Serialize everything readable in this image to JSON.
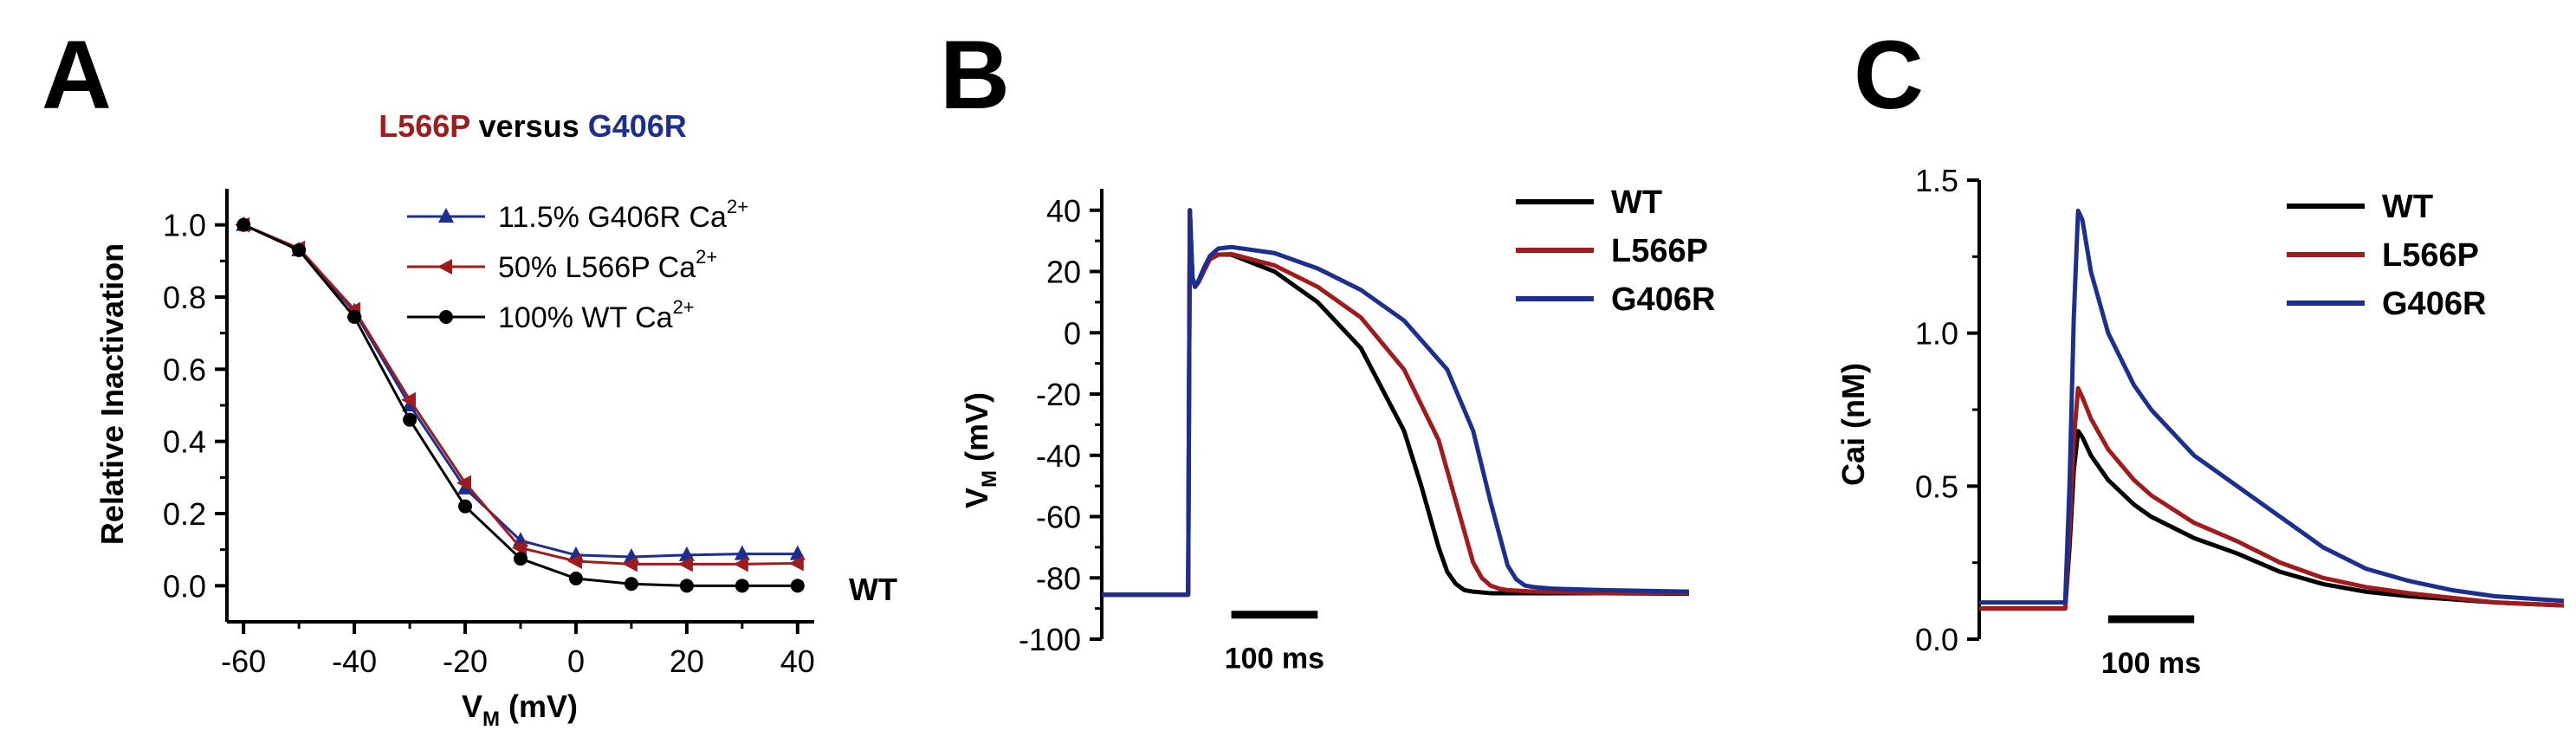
{
  "colors": {
    "wt": "#000000",
    "l566p": "#a01c1c",
    "g406r": "#1c2f8f"
  },
  "chart_data": [
    {
      "panel": "A",
      "type": "line",
      "title": {
        "part1": "L566P",
        "part2": "versus",
        "part3": "G406R"
      },
      "xlabel": {
        "main": "V",
        "sub": "M",
        "unit": "(mV)"
      },
      "ylabel": "Relative Inactivation",
      "xlim": [
        -63,
        43
      ],
      "ylim": [
        -0.1,
        1.1
      ],
      "xticks": [
        -60,
        -40,
        -20,
        0,
        20,
        40
      ],
      "yticks": [
        0.0,
        0.2,
        0.4,
        0.6,
        0.8,
        1.0
      ],
      "ytick_labels": [
        "0.0",
        "0.2",
        "0.4",
        "0.6",
        "0.8",
        "1.0"
      ],
      "x": [
        -60,
        -50,
        -40,
        -30,
        -20,
        -10,
        0,
        10,
        20,
        30,
        40
      ],
      "series": [
        {
          "name": "11.5% G406R Ca",
          "sup": "2+",
          "marker": "triangle-up",
          "color_key": "g406r",
          "values": [
            1.0,
            0.93,
            0.76,
            0.5,
            0.27,
            0.125,
            0.085,
            0.08,
            0.085,
            0.088,
            0.088
          ]
        },
        {
          "name": "50% L566P Ca",
          "sup": "2+",
          "marker": "triangle-left",
          "color_key": "l566p",
          "values": [
            1.0,
            0.935,
            0.765,
            0.515,
            0.285,
            0.105,
            0.068,
            0.06,
            0.06,
            0.06,
            0.062
          ]
        },
        {
          "name": "100% WT Ca",
          "sup": "2+",
          "marker": "circle",
          "color_key": "wt",
          "values": [
            1.0,
            0.93,
            0.745,
            0.46,
            0.22,
            0.075,
            0.02,
            0.005,
            0.0,
            0.0,
            0.0
          ]
        }
      ],
      "annotation": "WT"
    },
    {
      "panel": "B",
      "type": "line",
      "ylabel": {
        "main": "V",
        "sub": "M",
        "unit": "(mV)"
      },
      "ylim": [
        -100,
        47
      ],
      "yticks": [
        -100,
        -80,
        -60,
        -40,
        -20,
        0,
        20,
        40
      ],
      "xlim": [
        -100,
        580
      ],
      "scalebar": {
        "label": "100 ms",
        "x0": 50,
        "x1": 150,
        "y": -92
      },
      "series": [
        {
          "name": "WT",
          "color_key": "wt",
          "x": [
            -100,
            0,
            2,
            5,
            8,
            12,
            18,
            25,
            35,
            50,
            100,
            150,
            200,
            250,
            270,
            290,
            300,
            310,
            315,
            320,
            330,
            350,
            400,
            480,
            580
          ],
          "values": [
            -85.5,
            -85.5,
            40,
            18,
            15,
            16.5,
            20,
            24,
            25.5,
            25.5,
            20,
            10,
            -5,
            -32,
            -50,
            -70,
            -78,
            -82,
            -83,
            -84,
            -84.5,
            -85,
            -85,
            -85,
            -85.2
          ]
        },
        {
          "name": "L566P",
          "color_key": "l566p",
          "x": [
            -100,
            0,
            2,
            5,
            8,
            12,
            18,
            25,
            35,
            50,
            100,
            150,
            200,
            250,
            290,
            310,
            330,
            340,
            350,
            360,
            370,
            400,
            480,
            580
          ],
          "values": [
            -85.5,
            -85.5,
            40,
            18,
            15,
            16.5,
            20,
            24,
            25.5,
            25.7,
            22,
            15,
            5,
            -12,
            -35,
            -55,
            -75,
            -80,
            -82.5,
            -83.5,
            -84,
            -84.5,
            -85,
            -85
          ]
        },
        {
          "name": "G406R",
          "color_key": "g406r",
          "x": [
            -100,
            0,
            2,
            5,
            8,
            12,
            18,
            25,
            35,
            50,
            100,
            150,
            200,
            250,
            300,
            330,
            350,
            370,
            380,
            390,
            400,
            420,
            480,
            580
          ],
          "values": [
            -85.5,
            -85.5,
            40,
            18,
            15,
            17,
            21,
            25,
            27.5,
            28,
            26,
            21,
            14,
            4,
            -12,
            -32,
            -55,
            -76,
            -80.5,
            -82.5,
            -83,
            -83.5,
            -84,
            -84.5
          ]
        }
      ]
    },
    {
      "panel": "C",
      "type": "line",
      "ylabel": "Cai (nM)",
      "ylim": [
        0,
        1.5
      ],
      "yticks": [
        0.0,
        0.5,
        1.0,
        1.5
      ],
      "ytick_labels": [
        "0.0",
        "0.5",
        "1.0",
        "1.5"
      ],
      "xlim": [
        -100,
        580
      ],
      "scalebar": {
        "label": "100 ms",
        "x0": 50,
        "x1": 150,
        "y": 0.065
      },
      "series": [
        {
          "name": "WT",
          "color_key": "wt",
          "x": [
            -100,
            0,
            5,
            10,
            15,
            20,
            30,
            50,
            80,
            100,
            150,
            200,
            250,
            300,
            350,
            400,
            450,
            500,
            580
          ],
          "values": [
            0.1,
            0.1,
            0.3,
            0.55,
            0.68,
            0.66,
            0.6,
            0.52,
            0.44,
            0.4,
            0.33,
            0.28,
            0.22,
            0.18,
            0.155,
            0.14,
            0.13,
            0.12,
            0.11
          ]
        },
        {
          "name": "L566P",
          "color_key": "l566p",
          "x": [
            -100,
            0,
            5,
            10,
            15,
            20,
            30,
            50,
            80,
            100,
            150,
            200,
            250,
            300,
            350,
            400,
            450,
            500,
            580
          ],
          "values": [
            0.1,
            0.1,
            0.35,
            0.65,
            0.82,
            0.79,
            0.72,
            0.62,
            0.52,
            0.47,
            0.38,
            0.32,
            0.25,
            0.2,
            0.17,
            0.15,
            0.135,
            0.12,
            0.11
          ]
        },
        {
          "name": "G406R",
          "color_key": "g406r",
          "x": [
            -100,
            0,
            5,
            10,
            15,
            20,
            30,
            50,
            80,
            100,
            150,
            200,
            250,
            300,
            350,
            400,
            450,
            500,
            580
          ],
          "values": [
            0.12,
            0.12,
            0.5,
            1.05,
            1.4,
            1.37,
            1.2,
            1.0,
            0.83,
            0.75,
            0.6,
            0.5,
            0.4,
            0.3,
            0.23,
            0.19,
            0.16,
            0.14,
            0.125
          ]
        }
      ]
    }
  ]
}
